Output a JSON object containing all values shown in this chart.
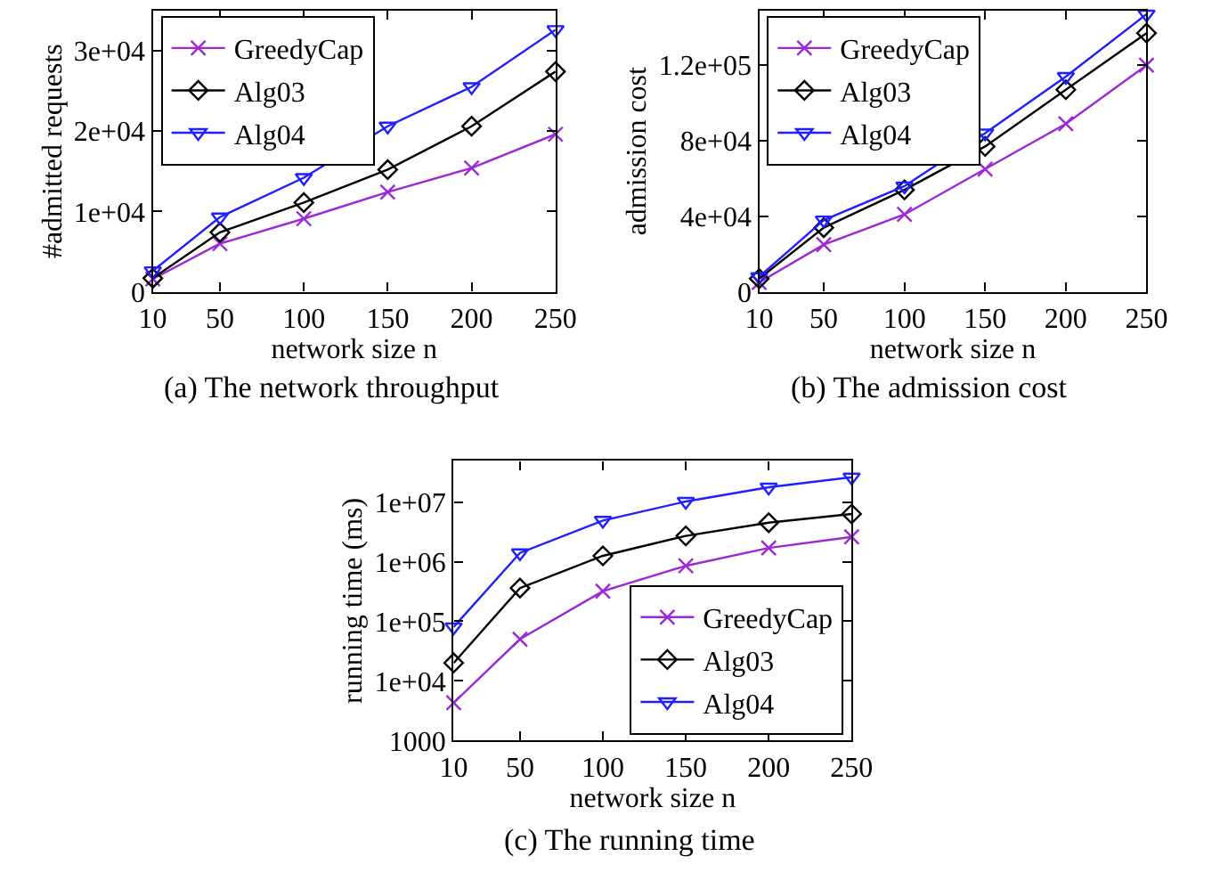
{
  "chart_data": [
    {
      "type": "line",
      "title": "(a) The network throughput",
      "xlabel": "network size n",
      "ylabel": "#admitted requests",
      "x": [
        10,
        50,
        100,
        150,
        200,
        250
      ],
      "xlim": [
        10,
        250
      ],
      "xticks": [
        10,
        50,
        100,
        150,
        200,
        250
      ],
      "ylim": [
        0,
        35000
      ],
      "yticks": [
        0,
        {
          "value": 10000,
          "label": "1e+04"
        },
        {
          "value": 20000,
          "label": "2e+04"
        },
        {
          "value": 30000,
          "label": "3e+04"
        }
      ],
      "grid": false,
      "legend": "top left",
      "line_style": "solid",
      "series": [
        {
          "name": "GreedyCap",
          "color": "#9c27d6",
          "marker": "cross",
          "values": [
            1600,
            6000,
            9100,
            12400,
            15400,
            19600
          ]
        },
        {
          "name": "Alg03",
          "color": "#000000",
          "marker": "diamond",
          "values": [
            1700,
            7400,
            11100,
            15200,
            20600,
            27400
          ]
        },
        {
          "name": "Alg04",
          "color": "#1f1fff",
          "marker": "triangle",
          "values": [
            2600,
            9300,
            14200,
            20600,
            25500,
            32600
          ]
        }
      ]
    },
    {
      "type": "line",
      "title": "(b) The admission cost",
      "xlabel": "network size n",
      "ylabel": "admission cost",
      "x": [
        10,
        50,
        100,
        150,
        200,
        250
      ],
      "xlim": [
        10,
        250
      ],
      "xticks": [
        10,
        50,
        100,
        150,
        200,
        250
      ],
      "ylim": [
        0,
        149000
      ],
      "yticks": [
        0,
        {
          "value": 40000,
          "label": "4e+04"
        },
        {
          "value": 80000,
          "label": "8e+04"
        },
        {
          "value": 120000,
          "label": "1.2e+05"
        }
      ],
      "grid": false,
      "legend": "top left",
      "line_style": "solid",
      "series": [
        {
          "name": "GreedyCap",
          "color": "#9c27d6",
          "marker": "cross",
          "values": [
            5000,
            25000,
            41000,
            65000,
            89000,
            120000
          ]
        },
        {
          "name": "Alg03",
          "color": "#000000",
          "marker": "diamond",
          "values": [
            7000,
            34000,
            54000,
            77000,
            107000,
            137000
          ]
        },
        {
          "name": "Alg04",
          "color": "#1f1fff",
          "marker": "triangle",
          "values": [
            8000,
            38000,
            56000,
            84000,
            114000,
            147000
          ]
        }
      ]
    },
    {
      "type": "line",
      "title": "(c) The running time",
      "xlabel": "network size n",
      "ylabel": "running time (ms)",
      "x": [
        10,
        50,
        100,
        150,
        200,
        250
      ],
      "xlim": [
        10,
        250
      ],
      "xticks": [
        10,
        50,
        100,
        150,
        200,
        250
      ],
      "log": "y",
      "ylim": [
        1000,
        49000000
      ],
      "yticks": [
        1000,
        {
          "value": 10000,
          "label": "1e+04"
        },
        {
          "value": 100000,
          "label": "1e+05"
        },
        {
          "value": 1000000,
          "label": "1e+06"
        },
        {
          "value": 10000000,
          "label": "1e+07"
        }
      ],
      "grid": false,
      "legend": "bottom right",
      "line_style": "solid",
      "series": [
        {
          "name": "GreedyCap",
          "color": "#9c27d6",
          "marker": "cross",
          "values": [
            4300,
            50000,
            320000,
            850000,
            1700000,
            2600000
          ]
        },
        {
          "name": "Alg03",
          "color": "#000000",
          "marker": "diamond",
          "values": [
            20000,
            360000,
            1250000,
            2700000,
            4500000,
            6300000
          ]
        },
        {
          "name": "Alg04",
          "color": "#1f1fff",
          "marker": "triangle",
          "values": [
            80000,
            1400000,
            4900000,
            10200000,
            17700000,
            26000000
          ]
        }
      ]
    }
  ]
}
